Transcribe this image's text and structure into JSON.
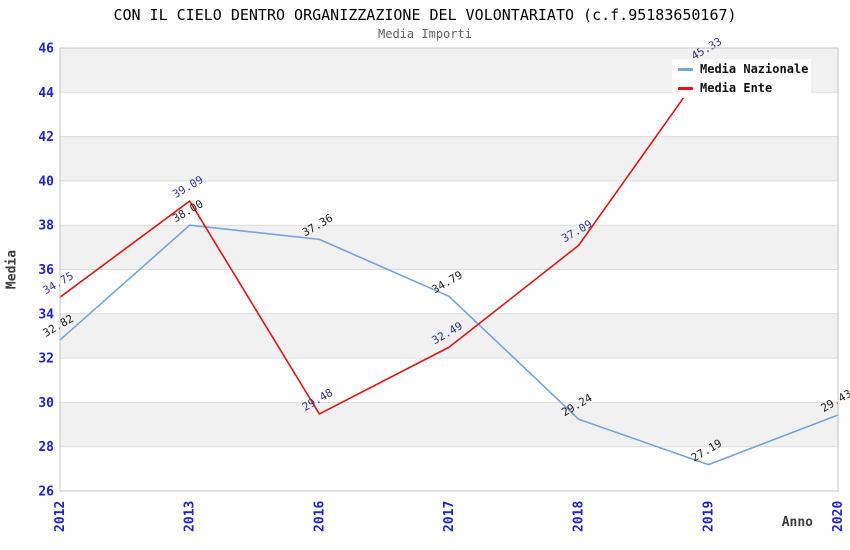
{
  "chart_data": {
    "type": "line",
    "title": "CON IL CIELO DENTRO ORGANIZZAZIONE DEL VOLONTARIATO (c.f.95183650167)",
    "subtitle": "Media Importi",
    "xlabel": "Anno",
    "ylabel": "Media",
    "categories": [
      "2012",
      "2013",
      "2016",
      "2017",
      "2018",
      "2019",
      "2020"
    ],
    "series": [
      {
        "name": "Media Nazionale",
        "color": "#74a4dc",
        "label_color": "#1f1f1f",
        "values": [
          32.82,
          38.0,
          37.36,
          34.79,
          29.24,
          27.19,
          29.43
        ],
        "value_labels": [
          "32.82",
          "38.00",
          "37.36",
          "34.79",
          "29.24",
          "27.19",
          "29.43"
        ]
      },
      {
        "name": "Media Ente",
        "color": "#e01616",
        "label_color": "#333399",
        "values": [
          34.75,
          39.09,
          29.48,
          32.49,
          37.09,
          45.33,
          null
        ],
        "value_labels": [
          "34.75",
          "39.09",
          "29.48",
          "32.49",
          "37.09",
          "45.33",
          null
        ]
      }
    ],
    "ylim": [
      26,
      46
    ],
    "y_tick_step": 2,
    "y_tick_labels": [
      "26",
      "28",
      "30",
      "32",
      "34",
      "36",
      "38",
      "40",
      "42",
      "44",
      "46"
    ],
    "grid": "horizontal-bands",
    "legend_position": "top-right",
    "colors": {
      "band_fill": "#f1f1f1",
      "grid_line": "#dcdcdc",
      "plot_border": "#c5c5c5",
      "tick_text": "#2121cc",
      "plot_background": "#ffffff"
    }
  }
}
